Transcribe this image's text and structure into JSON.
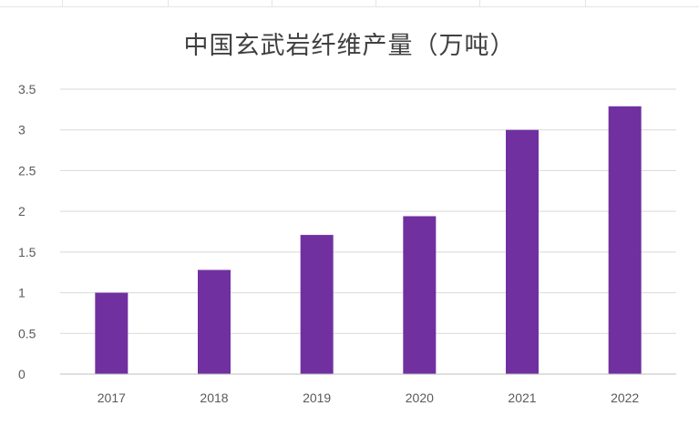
{
  "chart_data": {
    "type": "bar",
    "title": "中国玄武岩纤维产量（万吨）",
    "categories": [
      "2017",
      "2018",
      "2019",
      "2020",
      "2021",
      "2022"
    ],
    "values": [
      1.0,
      1.28,
      1.71,
      1.94,
      3.0,
      3.29
    ],
    "ylim": [
      0,
      3.5
    ],
    "yticks": [
      "0",
      "0.5",
      "1",
      "1.5",
      "2",
      "2.5",
      "3",
      "3.5"
    ],
    "grid": true,
    "bar_color": "#7030a0",
    "grid_color": "#d9d9d9",
    "axis_color": "#bfbfbf",
    "text_color": "#595959"
  }
}
